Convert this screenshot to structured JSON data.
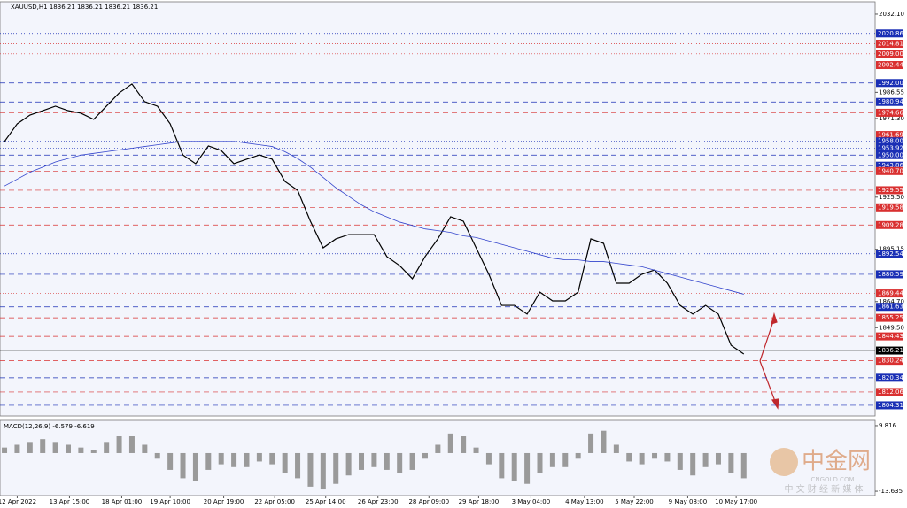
{
  "chart_data": [
    {
      "type": "line",
      "title": "XAUUSD,H1  1836.21 1836.21 1836.21 1836.21",
      "xlim": [
        -0.35,
        68.3
      ],
      "ylim": [
        1798.1,
        2039.3
      ],
      "yticks": [
        {
          "value": 2032.1,
          "label": "2032.10"
        },
        1986.55,
        {
          "value": 1971.3,
          "label": "1971.30"
        },
        {
          "value": 1925.5,
          "label": "1925.50"
        },
        1895.15,
        {
          "value": 1864.7,
          "label": "1864.70"
        },
        {
          "value": 1849.5,
          "label": "1849.50"
        }
      ],
      "series": [
        {
          "color": "#000000",
          "values": [
            1957.9,
            1968.2,
            1973.3,
            1975.9,
            1978.5,
            1975.9,
            1974.4,
            1970.8,
            1978.5,
            1986.2,
            1991.4,
            1981.1,
            1978.5,
            1968.2,
            1950.1,
            1945.0,
            1955.3,
            1952.7,
            1945.0,
            1947.6,
            1950.1,
            1947.6,
            1934.7,
            1929.5,
            1911.5,
            1896.0,
            1901.2,
            1903.7,
            1903.7,
            1903.7,
            1890.9,
            1885.7,
            1878.0,
            1890.9,
            1901.2,
            1914.1,
            1911.5,
            1896.0,
            1880.6,
            1862.5,
            1862.5,
            1857.4,
            1870.2,
            1865.1,
            1865.1,
            1870.2,
            1901.2,
            1898.6,
            1875.4,
            1875.4,
            1880.6,
            1883.1,
            1875.4,
            1862.5,
            1857.4,
            1862.5,
            1857.4,
            1839.3,
            1834.2
          ]
        },
        {
          "color": "#3344cc",
          "values": [
            1932,
            1936,
            1940,
            1943,
            1946,
            1948,
            1950,
            1951,
            1952,
            1953,
            1954,
            1955,
            1956,
            1957,
            1958,
            1958,
            1958,
            1958,
            1958,
            1957,
            1956,
            1955,
            1952,
            1948,
            1943,
            1937,
            1931,
            1926,
            1921,
            1917,
            1914,
            1911,
            1909,
            1907,
            1906,
            1905,
            1903,
            1902,
            1900,
            1898,
            1896,
            1894,
            1892,
            1890,
            1889,
            1889,
            1888,
            1888,
            1887,
            1886,
            1885,
            1883,
            1881,
            1879,
            1877,
            1875,
            1873,
            1871,
            1869
          ]
        }
      ],
      "levels": [
        {
          "price": 2020.86,
          "color": "#1a2fb5",
          "style": "dotted"
        },
        {
          "price": 2014.81,
          "color": "#d93030",
          "style": "dotted"
        },
        {
          "price": {
            "value": 2009,
            "label": "2009.00"
          },
          "color": "#d93030",
          "style": "dotted"
        },
        {
          "price": 2002.44,
          "color": "#d93030",
          "style": "dashed"
        },
        {
          "price": {
            "value": 1992,
            "label": "1992.00"
          },
          "color": "#1a2fb5",
          "style": "dashed"
        },
        {
          "price": 1980.94,
          "color": "#1a2fb5",
          "style": "dashed"
        },
        {
          "price": 1974.66,
          "color": "#d93030",
          "style": "dashed"
        },
        {
          "price": 1961.69,
          "color": "#d93030",
          "style": "dashed"
        },
        {
          "price": {
            "value": 1958,
            "label": "1958.00"
          },
          "color": "#1a2fb5",
          "style": "dotted"
        },
        {
          "price": 1953.92,
          "color": "#1a2fb5",
          "style": "dotted"
        },
        {
          "price": {
            "value": 1950,
            "label": "1950.00"
          },
          "color": "#1a2fb5",
          "style": "dashed"
        },
        {
          "price": 1943.86,
          "color": "#1a2fb5",
          "style": "dashed"
        },
        {
          "price": {
            "value": 1940.7,
            "label": "1940.70"
          },
          "color": "#d93030",
          "style": "dashed"
        },
        {
          "price": 1929.55,
          "color": "#d93030",
          "style": "dashed"
        },
        {
          "price": 1919.58,
          "color": "#d93030",
          "style": "dashed"
        },
        {
          "price": 1909.28,
          "color": "#d93030",
          "style": "dashed"
        },
        {
          "price": 1892.54,
          "color": "#1a2fb5",
          "style": "dotted"
        },
        {
          "price": 1880.59,
          "color": "#1a2fb5",
          "style": "dashed"
        },
        {
          "price": 1869.44,
          "color": "#d93030",
          "style": "dotted"
        },
        {
          "price": 1861.63,
          "color": "#1a2fb5",
          "style": "dashed"
        },
        {
          "price": 1855.25,
          "color": "#d93030",
          "style": "dashed"
        },
        {
          "price": 1844.43,
          "color": "#d93030",
          "style": "dashed"
        },
        {
          "price": 1836.21,
          "color": "#000000",
          "style": "solid"
        },
        {
          "price": 1830.24,
          "color": "#d93030",
          "style": "dashed"
        },
        {
          "price": 1820.34,
          "color": "#1a2fb5",
          "style": "dashed"
        },
        {
          "price": 1812.06,
          "color": "#d93030",
          "style": "dashed"
        },
        {
          "price": 1804.31,
          "color": "#1a2fb5",
          "style": "dashed"
        }
      ]
    },
    {
      "type": "bar",
      "title": "MACD(12,26,9) -6.579 -6.619",
      "color": "#9a9a9a",
      "xlim": [
        -0.35,
        68.3
      ],
      "ylim": [
        -15.2,
        11.7
      ],
      "yticks": [
        9.816,
        -13.635
      ],
      "values": [
        2,
        3,
        4,
        5,
        4,
        3,
        2,
        1,
        4,
        6,
        6,
        3,
        -2,
        -6,
        -9,
        -10,
        -6,
        -4,
        -5,
        -5,
        -3,
        -4,
        -7,
        -9,
        -12,
        -13,
        -11,
        -8,
        -6,
        -5,
        -6,
        -7,
        -6,
        -2,
        3,
        7,
        6,
        2,
        -4,
        -9,
        -10,
        -11,
        -7,
        -5,
        -5,
        -2,
        7,
        8,
        3,
        -3,
        -4,
        -2,
        -3,
        -6,
        -8,
        -5,
        -4,
        -7,
        -9
      ],
      "xticks": [
        {
          "value": 1.0,
          "label": "12 Apr 2022"
        },
        {
          "value": 5.1,
          "label": "13 Apr 15:00"
        },
        {
          "value": 9.2,
          "label": "18 Apr 01:00"
        },
        {
          "value": 13.0,
          "label": "19 Apr 10:00"
        },
        {
          "value": 17.2,
          "label": "20 Apr 19:00"
        },
        {
          "value": 21.2,
          "label": "22 Apr 05:00"
        },
        {
          "value": 25.2,
          "label": "25 Apr 14:00"
        },
        {
          "value": 29.3,
          "label": "26 Apr 23:00"
        },
        {
          "value": 33.3,
          "label": "28 Apr 09:00"
        },
        {
          "value": 37.2,
          "label": "29 Apr 18:00"
        },
        {
          "value": 41.3,
          "label": "3 May 04:00"
        },
        {
          "value": 45.5,
          "label": "4 May 13:00"
        },
        {
          "value": 49.4,
          "label": "5 May 22:00"
        },
        {
          "value": 53.6,
          "label": "9 May 08:00"
        },
        {
          "value": 57.4,
          "label": "10 May 17:00"
        }
      ]
    }
  ],
  "watermark": {
    "brand": "中金网",
    "site": "CNGOLD.COM",
    "slogan": "中 文 财 经 新 媒 体"
  }
}
